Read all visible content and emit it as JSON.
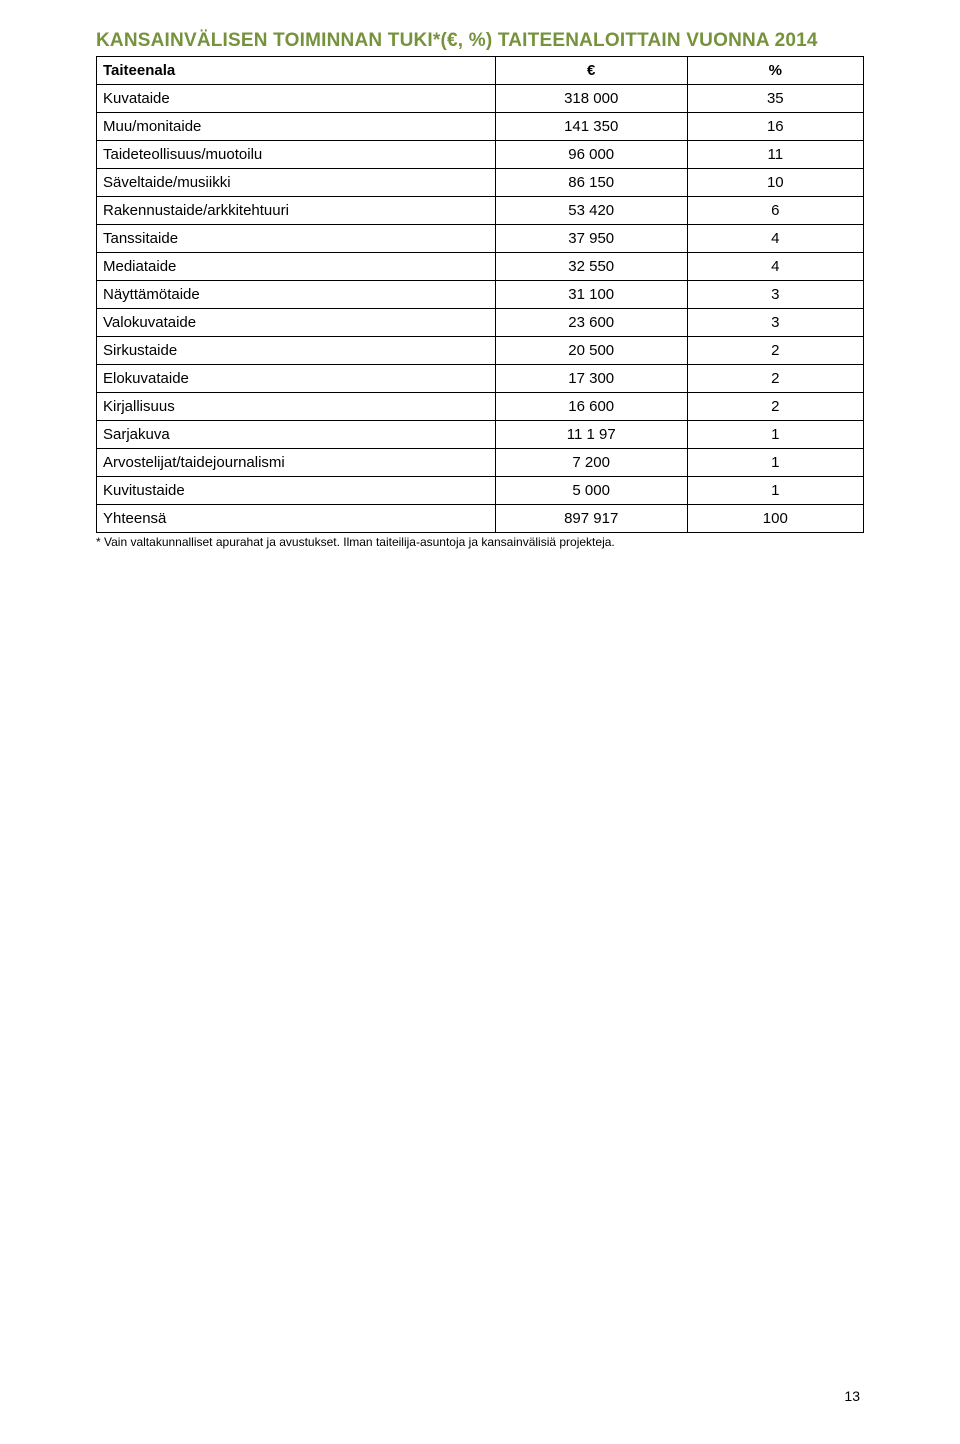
{
  "title": "KANSAINVÄLISEN TOIMINNAN TUKI*(€, %) TAITEENALOITTAIN VUONNA 2014",
  "title_color": "#76923c",
  "columns": {
    "name": "Taiteenala",
    "euro": "€",
    "pct": "%"
  },
  "rows": [
    {
      "name": "Kuvataide",
      "euro": "318 000",
      "pct": "35"
    },
    {
      "name": "Muu/monitaide",
      "euro": "141 350",
      "pct": "16"
    },
    {
      "name": "Taideteollisuus/muotoilu",
      "euro": "96 000",
      "pct": "11"
    },
    {
      "name": "Säveltaide/musiikki",
      "euro": "86 150",
      "pct": "10"
    },
    {
      "name": "Rakennustaide/arkkitehtuuri",
      "euro": "53 420",
      "pct": "6"
    },
    {
      "name": "Tanssitaide",
      "euro": "37 950",
      "pct": "4"
    },
    {
      "name": "Mediataide",
      "euro": "32 550",
      "pct": "4"
    },
    {
      "name": "Näyttämötaide",
      "euro": "31 100",
      "pct": "3"
    },
    {
      "name": "Valokuvataide",
      "euro": "23 600",
      "pct": "3"
    },
    {
      "name": "Sirkustaide",
      "euro": "20 500",
      "pct": "2"
    },
    {
      "name": "Elokuvataide",
      "euro": "17 300",
      "pct": "2"
    },
    {
      "name": "Kirjallisuus",
      "euro": "16 600",
      "pct": "2"
    },
    {
      "name": "Sarjakuva",
      "euro": "11 1 97",
      "pct": "1"
    },
    {
      "name": "Arvostelijat/taidejournalismi",
      "euro": "7 200",
      "pct": "1"
    },
    {
      "name": "Kuvitustaide",
      "euro": "5 000",
      "pct": "1"
    }
  ],
  "total": {
    "name": "Yhteensä",
    "euro": "897 917",
    "pct": "100"
  },
  "footnote": "* Vain valtakunnalliset apurahat ja avustukset. Ilman taiteilija-asuntoja ja kansainvälisiä projekteja.",
  "page_number": "13"
}
